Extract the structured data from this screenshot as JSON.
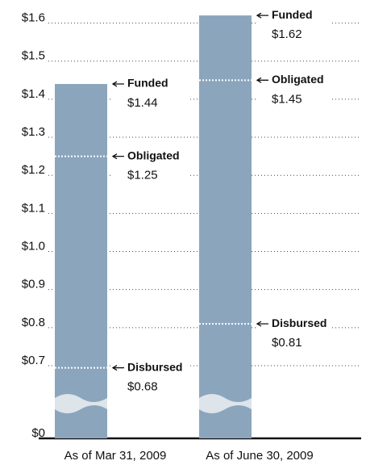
{
  "chart_data": {
    "type": "bar",
    "categories": [
      "As of Mar 31, 2009",
      "As of June 30, 2009"
    ],
    "series": [
      {
        "name": "Funded",
        "values": [
          1.44,
          1.62
        ],
        "value_labels": [
          "$1.44",
          "$1.62"
        ],
        "color": "#8ba5bd"
      },
      {
        "name": "Obligated",
        "values": [
          1.25,
          1.45
        ],
        "value_labels": [
          "$1.25",
          "$1.45"
        ],
        "color": "#ffffff"
      },
      {
        "name": "Disbursed",
        "values": [
          0.68,
          0.81
        ],
        "value_labels": [
          "$0.68",
          "$0.81"
        ],
        "color": "#ffffff"
      }
    ],
    "ylim": [
      0,
      1.65
    ],
    "yticks": [
      {
        "value": 0,
        "label": "$0"
      },
      {
        "value": 0.7,
        "label": "$0.7"
      },
      {
        "value": 0.8,
        "label": "$0.8"
      },
      {
        "value": 0.9,
        "label": "$0.9"
      },
      {
        "value": 1.0,
        "label": "$1.0"
      },
      {
        "value": 1.1,
        "label": "$1.1"
      },
      {
        "value": 1.2,
        "label": "$1.2"
      },
      {
        "value": 1.3,
        "label": "$1.3"
      },
      {
        "value": 1.4,
        "label": "$1.4"
      },
      {
        "value": 1.5,
        "label": "$1.5"
      },
      {
        "value": 1.6,
        "label": "$1.6"
      }
    ],
    "axis_break": true,
    "grid": true
  }
}
